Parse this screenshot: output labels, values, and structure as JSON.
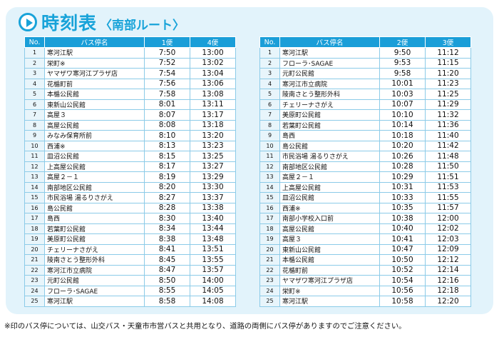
{
  "header": {
    "title": "時刻表",
    "subtitle": "〈南部ルート〉",
    "icon": "play-circle-icon",
    "accent_color": "#18a3d9"
  },
  "columns": {
    "no": "No.",
    "stop": "バス停名"
  },
  "left_table": {
    "col_a": "1便",
    "col_b": "4便",
    "rows": [
      {
        "no": "1",
        "stop": "寒河江駅",
        "a": "7:50",
        "b": "13:00"
      },
      {
        "no": "2",
        "stop": "栄町※",
        "a": "7:52",
        "b": "13:02"
      },
      {
        "no": "3",
        "stop": "ヤマザワ寒河江プラザ店",
        "a": "7:54",
        "b": "13:04"
      },
      {
        "no": "4",
        "stop": "花楯町前",
        "a": "7:56",
        "b": "13:06"
      },
      {
        "no": "5",
        "stop": "本楯公民館",
        "a": "7:58",
        "b": "13:08"
      },
      {
        "no": "6",
        "stop": "東新山公民館",
        "a": "8:01",
        "b": "13:11"
      },
      {
        "no": "7",
        "stop": "高屋３",
        "a": "8:07",
        "b": "13:17"
      },
      {
        "no": "8",
        "stop": "高屋公民館",
        "a": "8:08",
        "b": "13:18"
      },
      {
        "no": "9",
        "stop": "みなみ保育所前",
        "a": "8:10",
        "b": "13:20"
      },
      {
        "no": "10",
        "stop": "西浦※",
        "a": "8:13",
        "b": "13:23"
      },
      {
        "no": "11",
        "stop": "皿沼公民館",
        "a": "8:15",
        "b": "13:25"
      },
      {
        "no": "12",
        "stop": "上高屋公民館",
        "a": "8:17",
        "b": "13:27"
      },
      {
        "no": "13",
        "stop": "高屋２－１",
        "a": "8:19",
        "b": "13:29"
      },
      {
        "no": "14",
        "stop": "南部地区公民館",
        "a": "8:20",
        "b": "13:30"
      },
      {
        "no": "15",
        "stop": "市民浴場 湯るりさがえ",
        "a": "8:27",
        "b": "13:37"
      },
      {
        "no": "16",
        "stop": "島公民館",
        "a": "8:28",
        "b": "13:38"
      },
      {
        "no": "17",
        "stop": "島西",
        "a": "8:30",
        "b": "13:40"
      },
      {
        "no": "18",
        "stop": "若葉町公民館",
        "a": "8:34",
        "b": "13:44"
      },
      {
        "no": "19",
        "stop": "美原町公民館",
        "a": "8:38",
        "b": "13:48"
      },
      {
        "no": "20",
        "stop": "チェリーナさがえ",
        "a": "8:41",
        "b": "13:51"
      },
      {
        "no": "21",
        "stop": "陵南さとう整形外科",
        "a": "8:45",
        "b": "13:55"
      },
      {
        "no": "22",
        "stop": "寒河江市立病院",
        "a": "8:47",
        "b": "13:57"
      },
      {
        "no": "23",
        "stop": "元町公民館",
        "a": "8:50",
        "b": "14:00"
      },
      {
        "no": "24",
        "stop": "フローラ･SAGAE",
        "a": "8:55",
        "b": "14:05"
      },
      {
        "no": "25",
        "stop": "寒河江駅",
        "a": "8:58",
        "b": "14:08"
      }
    ]
  },
  "right_table": {
    "col_a": "2便",
    "col_b": "3便",
    "rows": [
      {
        "no": "1",
        "stop": "寒河江駅",
        "a": "9:50",
        "b": "11:12"
      },
      {
        "no": "2",
        "stop": "フローラ･SAGAE",
        "a": "9:53",
        "b": "11:15"
      },
      {
        "no": "3",
        "stop": "元町公民館",
        "a": "9:58",
        "b": "11:20"
      },
      {
        "no": "4",
        "stop": "寒河江市立病院",
        "a": "10:01",
        "b": "11:23"
      },
      {
        "no": "5",
        "stop": "陵南さとう整形外科",
        "a": "10:03",
        "b": "11:25"
      },
      {
        "no": "6",
        "stop": "チェリーナさがえ",
        "a": "10:07",
        "b": "11:29"
      },
      {
        "no": "7",
        "stop": "美原町公民館",
        "a": "10:10",
        "b": "11:32"
      },
      {
        "no": "8",
        "stop": "若葉町公民館",
        "a": "10:14",
        "b": "11:36"
      },
      {
        "no": "9",
        "stop": "島西",
        "a": "10:18",
        "b": "11:40"
      },
      {
        "no": "10",
        "stop": "島公民館",
        "a": "10:20",
        "b": "11:42"
      },
      {
        "no": "11",
        "stop": "市民浴場 湯るりさがえ",
        "a": "10:26",
        "b": "11:48"
      },
      {
        "no": "12",
        "stop": "南部地区公民館",
        "a": "10:28",
        "b": "11:50"
      },
      {
        "no": "13",
        "stop": "高屋２－１",
        "a": "10:29",
        "b": "11:51"
      },
      {
        "no": "14",
        "stop": "上高屋公民館",
        "a": "10:31",
        "b": "11:53"
      },
      {
        "no": "15",
        "stop": "皿沼公民館",
        "a": "10:33",
        "b": "11:55"
      },
      {
        "no": "16",
        "stop": "西浦※",
        "a": "10:35",
        "b": "11:57"
      },
      {
        "no": "17",
        "stop": "南部小学校入口前",
        "a": "10:38",
        "b": "12:00"
      },
      {
        "no": "18",
        "stop": "高屋公民館",
        "a": "10:40",
        "b": "12:02"
      },
      {
        "no": "19",
        "stop": "高屋３",
        "a": "10:41",
        "b": "12:03"
      },
      {
        "no": "20",
        "stop": "東新山公民館",
        "a": "10:47",
        "b": "12:09"
      },
      {
        "no": "21",
        "stop": "本楯公民館",
        "a": "10:50",
        "b": "12:12"
      },
      {
        "no": "22",
        "stop": "花楯町前",
        "a": "10:52",
        "b": "12:14"
      },
      {
        "no": "23",
        "stop": "ヤマザワ寒河江プラザ店",
        "a": "10:54",
        "b": "12:16"
      },
      {
        "no": "24",
        "stop": "栄町※",
        "a": "10:56",
        "b": "12:18"
      },
      {
        "no": "25",
        "stop": "寒河江駅",
        "a": "10:58",
        "b": "12:20"
      }
    ]
  },
  "footnote": "※印のバス停については、山交バス・天童市市営バスと共用となり、道路の両側にバス停がありますのでご注意ください。"
}
